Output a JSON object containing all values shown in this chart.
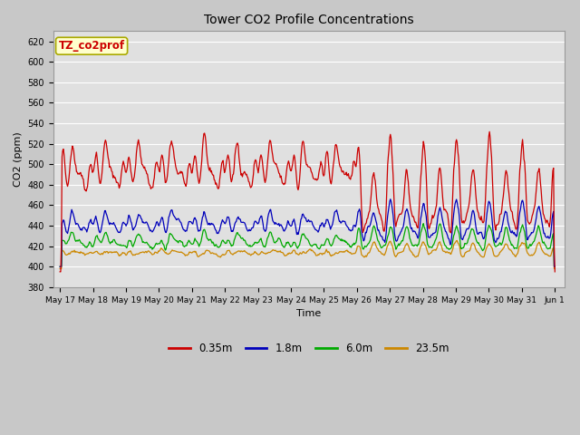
{
  "title": "Tower CO2 Profile Concentrations",
  "xlabel": "Time",
  "ylabel": "CO2 (ppm)",
  "ylim": [
    380,
    630
  ],
  "yticks": [
    380,
    400,
    420,
    440,
    460,
    480,
    500,
    520,
    540,
    560,
    580,
    600,
    620
  ],
  "legend_label": "TZ_co2prof",
  "legend_bg": "#ffffcc",
  "legend_border": "#aaaa00",
  "series_labels": [
    "0.35m",
    "1.8m",
    "6.0m",
    "23.5m"
  ],
  "series_colors": [
    "#cc0000",
    "#0000bb",
    "#00aa00",
    "#cc8800"
  ],
  "fig_bg": "#c8c8c8",
  "plot_bg": "#e0e0e0",
  "seed": 42,
  "xtick_labels": [
    "May 17",
    "May 18",
    "May 19",
    "May 20",
    "May 21",
    "May 22",
    "May 23",
    "May 24",
    "May 25",
    "May 26",
    "May 27",
    "May 28",
    "May 29",
    "May 30",
    "May 31",
    "Jun 1"
  ]
}
